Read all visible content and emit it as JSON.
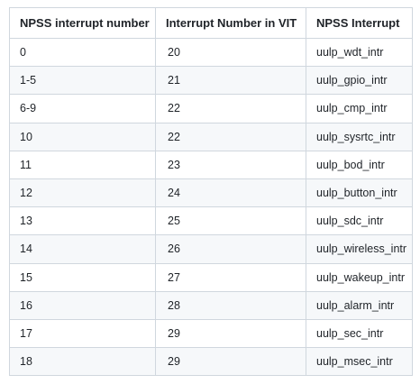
{
  "table": {
    "headers": [
      "NPSS interrupt number",
      "Interrupt Number in VIT",
      "NPSS Interrupt"
    ],
    "rows": [
      [
        "0",
        "20",
        "uulp_wdt_intr"
      ],
      [
        "1-5",
        "21",
        "uulp_gpio_intr"
      ],
      [
        "6-9",
        "22",
        "uulp_cmp_intr"
      ],
      [
        "10",
        "22",
        "uulp_sysrtc_intr"
      ],
      [
        "11",
        "23",
        "uulp_bod_intr"
      ],
      [
        "12",
        "24",
        "uulp_button_intr"
      ],
      [
        "13",
        "25",
        "uulp_sdc_intr"
      ],
      [
        "14",
        "26",
        "uulp_wireless_intr"
      ],
      [
        "15",
        "27",
        "uulp_wakeup_intr"
      ],
      [
        "16",
        "28",
        "uulp_alarm_intr"
      ],
      [
        "17",
        "29",
        "uulp_sec_intr"
      ],
      [
        "18",
        "29",
        "uulp_msec_intr"
      ]
    ]
  }
}
